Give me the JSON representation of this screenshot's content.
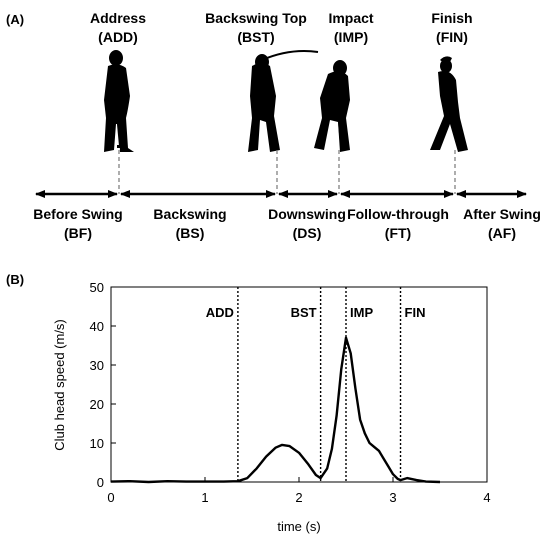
{
  "panel_a": {
    "label": "(A)",
    "events": [
      {
        "name": "Address",
        "abbr": "(ADD)"
      },
      {
        "name": "Backswing Top",
        "abbr": "(BST)"
      },
      {
        "name": "Impact",
        "abbr": "(IMP)"
      },
      {
        "name": "Finish",
        "abbr": "(FIN)"
      }
    ],
    "phases": [
      {
        "name": "Before Swing",
        "abbr": "(BF)"
      },
      {
        "name": "Backswing",
        "abbr": "(BS)"
      },
      {
        "name": "Downswing",
        "abbr": "(DS)"
      },
      {
        "name": "Follow-through",
        "abbr": "(FT)"
      },
      {
        "name": "After Swing",
        "abbr": "(AF)"
      }
    ]
  },
  "panel_b": {
    "label": "(B)",
    "chart_data": {
      "type": "line",
      "xlabel": "time (s)",
      "ylabel": "Club head speed (m/s)",
      "xlim": [
        0,
        4
      ],
      "ylim": [
        0,
        50
      ],
      "xticks": [
        0,
        1,
        2,
        3,
        4
      ],
      "yticks": [
        0,
        10,
        20,
        30,
        40,
        50
      ],
      "event_lines": [
        {
          "label": "ADD",
          "x": 1.35
        },
        {
          "label": "BST",
          "x": 2.23
        },
        {
          "label": "IMP",
          "x": 2.5
        },
        {
          "label": "FIN",
          "x": 3.08
        }
      ],
      "series": [
        {
          "x": [
            0.0,
            0.2,
            0.4,
            0.6,
            0.8,
            1.0,
            1.2,
            1.35,
            1.45,
            1.55,
            1.65,
            1.75,
            1.82,
            1.9,
            2.0,
            2.1,
            2.18,
            2.23,
            2.3,
            2.35,
            2.4,
            2.45,
            2.5,
            2.55,
            2.6,
            2.65,
            2.7,
            2.75,
            2.8,
            2.85,
            2.9,
            2.95,
            3.0,
            3.05,
            3.08,
            3.15,
            3.25,
            3.35,
            3.5
          ],
          "y": [
            0.1,
            0.2,
            0.0,
            0.2,
            0.1,
            0.1,
            0.1,
            0.2,
            1.0,
            3.5,
            6.5,
            8.8,
            9.5,
            9.2,
            7.5,
            4.5,
            1.8,
            1.0,
            3.5,
            8.5,
            17.0,
            29.0,
            37.0,
            33.0,
            24.0,
            16.0,
            12.5,
            10.0,
            9.0,
            8.0,
            6.0,
            4.0,
            2.0,
            0.8,
            0.5,
            1.0,
            0.5,
            0.1,
            0.0
          ]
        }
      ]
    }
  }
}
